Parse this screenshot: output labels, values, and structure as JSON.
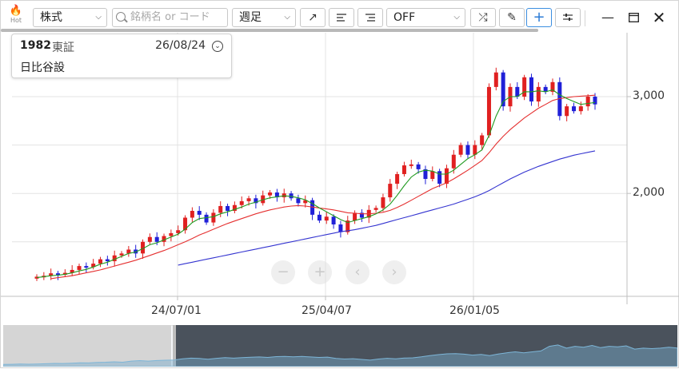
{
  "toolbar": {
    "hot_label": "Hot",
    "type_select": "株式",
    "search_placeholder": "銘柄名 or コード",
    "period_select": "週足",
    "off_select": "OFF"
  },
  "stock": {
    "code": "1982",
    "market": "東証",
    "date": "26/08/24",
    "name": "日比谷設"
  },
  "icons": [
    "hot-flame-icon",
    "chevron-down-icon",
    "search-icon",
    "arrow-ne-icon",
    "align-left-icon",
    "align-right-icon",
    "shuffle-icon",
    "pencil-icon",
    "crosshair-plus-icon",
    "sliders-icon",
    "minimize-icon",
    "maximize-icon",
    "close-icon",
    "zoom-out-icon",
    "zoom-in-icon",
    "chevron-left-icon",
    "chevron-right-icon",
    "chevron-down-circle-icon"
  ],
  "chart_data": {
    "type": "candlestick",
    "y_ticks": [
      "3,000",
      "2,000"
    ],
    "x_ticks": [
      "24/07/01",
      "25/04/07",
      "26/01/05"
    ],
    "ylim": [
      1000,
      3550
    ],
    "colors": {
      "up": "#e02020",
      "down": "#2020d8",
      "ma_short": "#1f9a1f",
      "ma_mid": "#e53030",
      "ma_long": "#3434d0"
    },
    "closes": [
      1140,
      1150,
      1175,
      1160,
      1180,
      1210,
      1250,
      1240,
      1275,
      1320,
      1300,
      1360,
      1380,
      1420,
      1380,
      1500,
      1550,
      1500,
      1560,
      1590,
      1620,
      1750,
      1820,
      1780,
      1700,
      1800,
      1870,
      1820,
      1880,
      1920,
      1950,
      1900,
      1980,
      2010,
      1960,
      2000,
      1950,
      1900,
      1930,
      1780,
      1720,
      1760,
      1680,
      1600,
      1720,
      1800,
      1750,
      1830,
      1850,
      1960,
      2100,
      2200,
      2290,
      2300,
      2250,
      2150,
      2230,
      2100,
      2260,
      2400,
      2500,
      2400,
      2500,
      2600,
      3100,
      3250,
      2900,
      3100,
      3000,
      3200,
      2950,
      3100,
      3050,
      3150,
      2800,
      2900,
      2850,
      2900,
      3000,
      2920
    ],
    "ma_short": [
      1130,
      1140,
      1150,
      1155,
      1165,
      1180,
      1200,
      1215,
      1240,
      1270,
      1290,
      1320,
      1350,
      1380,
      1395,
      1430,
      1470,
      1490,
      1520,
      1550,
      1580,
      1630,
      1700,
      1740,
      1750,
      1760,
      1790,
      1810,
      1835,
      1860,
      1890,
      1910,
      1935,
      1955,
      1965,
      1975,
      1970,
      1955,
      1935,
      1895,
      1850,
      1810,
      1770,
      1730,
      1700,
      1720,
      1740,
      1760,
      1790,
      1830,
      1890,
      1980,
      2080,
      2170,
      2220,
      2240,
      2230,
      2200,
      2200,
      2240,
      2300,
      2360,
      2400,
      2450,
      2600,
      2800,
      2950,
      3000,
      3000,
      3050,
      3050,
      3060,
      3050,
      3070,
      3020,
      2980,
      2950,
      2920,
      2930,
      2940
    ],
    "ma_mid": [
      null,
      null,
      1120,
      1130,
      1140,
      1150,
      1165,
      1180,
      1195,
      1210,
      1230,
      1250,
      1270,
      1290,
      1310,
      1335,
      1360,
      1385,
      1410,
      1440,
      1470,
      1500,
      1535,
      1570,
      1600,
      1630,
      1660,
      1690,
      1715,
      1740,
      1765,
      1790,
      1810,
      1830,
      1845,
      1860,
      1870,
      1875,
      1870,
      1860,
      1850,
      1840,
      1830,
      1815,
      1800,
      1795,
      1790,
      1790,
      1795,
      1805,
      1825,
      1855,
      1890,
      1930,
      1970,
      2010,
      2050,
      2080,
      2110,
      2150,
      2195,
      2240,
      2290,
      2340,
      2420,
      2510,
      2590,
      2660,
      2720,
      2780,
      2830,
      2880,
      2920,
      2960,
      2980,
      2990,
      3000,
      3005,
      3010,
      3015
    ],
    "ma_long": [
      null,
      null,
      null,
      null,
      null,
      null,
      null,
      null,
      null,
      null,
      null,
      null,
      null,
      null,
      null,
      null,
      null,
      null,
      null,
      null,
      1260,
      1275,
      1290,
      1305,
      1320,
      1335,
      1350,
      1365,
      1380,
      1395,
      1410,
      1425,
      1440,
      1455,
      1470,
      1485,
      1500,
      1515,
      1530,
      1545,
      1560,
      1575,
      1590,
      1605,
      1615,
      1625,
      1640,
      1655,
      1670,
      1690,
      1710,
      1730,
      1750,
      1770,
      1790,
      1810,
      1830,
      1850,
      1870,
      1890,
      1915,
      1940,
      1965,
      1995,
      2030,
      2070,
      2110,
      2150,
      2185,
      2220,
      2250,
      2280,
      2305,
      2330,
      2355,
      2375,
      2395,
      2410,
      2425,
      2440
    ]
  }
}
